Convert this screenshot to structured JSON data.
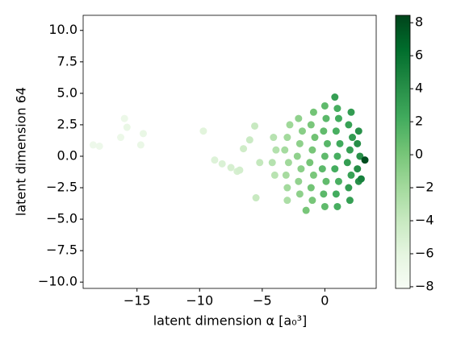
{
  "chart_data": {
    "type": "scatter",
    "xlabel": "latent dimension α [a₀³]",
    "ylabel": "latent dimension 64",
    "x": [
      -18.5,
      -18,
      -16,
      -15.8,
      -16.3,
      -14.5,
      -14.7,
      -9.7,
      -8.8,
      -8.2,
      -7.5,
      -7,
      -6.5,
      -6.8,
      -6,
      -5.6,
      -5.5,
      -5.2,
      -4,
      -4.2,
      -3.9,
      -4.1,
      -3,
      -3.1,
      -2.9,
      -3.2,
      -3,
      -2.8,
      -2,
      -2.1,
      -1.9,
      -2.2,
      -2,
      -1.8,
      -2.1,
      -1,
      -1.1,
      -0.9,
      -1.2,
      -1,
      -0.8,
      -1.1,
      -0.9,
      0,
      -0.1,
      0.1,
      -0.2,
      0,
      0.2,
      -0.1,
      0.1,
      0,
      1,
      0.9,
      1.1,
      0.8,
      1,
      1.2,
      0.9,
      1.1,
      1,
      2,
      1.9,
      2.1,
      1.8,
      2,
      2.2,
      1.9,
      2.1,
      2.7,
      2.6,
      2.8,
      2.6,
      2.7,
      3.2,
      2.9,
      0.8,
      -3,
      -1.5
    ],
    "values": [
      0.9,
      0.8,
      3,
      2.3,
      1.5,
      1.8,
      0.9,
      2,
      -0.3,
      -0.6,
      -0.9,
      -1.2,
      0.6,
      -1.1,
      1.3,
      2.4,
      -3.3,
      -0.5,
      -1.5,
      -0.5,
      0.5,
      1.5,
      -2.5,
      -1.5,
      -0.5,
      0.5,
      1.5,
      2.5,
      -3,
      -2,
      -1,
      0,
      1,
      2,
      3,
      -3.5,
      -2.5,
      -1.5,
      -0.5,
      0.5,
      1.5,
      2.5,
      3.5,
      -4,
      -3,
      -2,
      -1,
      0,
      1,
      2,
      3,
      4,
      -4,
      -3,
      -2,
      -1,
      0,
      1,
      2,
      3,
      3.8,
      -3.5,
      -2.5,
      -1.5,
      -0.5,
      0.5,
      1.5,
      2.5,
      3.5,
      -2,
      -1,
      0,
      1,
      2,
      -0.3,
      -1.8,
      4.7,
      -3.5,
      -4.3
    ],
    "color_values": [
      -7,
      -7,
      -6.8,
      -6.5,
      -6.8,
      -6.5,
      -6.6,
      -5.8,
      -5.5,
      -5.3,
      -5,
      -5,
      -4.5,
      -4.8,
      -4.2,
      -4,
      -4,
      -3.8,
      -3.2,
      -3,
      -2.9,
      -3.1,
      -2,
      -2.2,
      -1.9,
      -2.1,
      -2,
      -1.8,
      -1,
      -1.2,
      -0.9,
      -1.1,
      -1,
      -0.8,
      -1.1,
      0,
      0.2,
      -0.1,
      0.1,
      0,
      0.3,
      -0.1,
      0.2,
      1,
      1.2,
      0.9,
      1.1,
      1,
      1.3,
      0.9,
      1.2,
      1,
      2,
      2.2,
      1.9,
      2.1,
      2,
      2.3,
      1.9,
      2.2,
      2,
      3,
      3.2,
      2.9,
      3.1,
      3,
      3.3,
      2.9,
      3.2,
      4,
      4.2,
      3.9,
      4.1,
      4,
      8,
      5,
      3,
      -2.5,
      0
    ],
    "colormap": [
      "#f7fcf5",
      "#e5f5e0",
      "#c7e9c0",
      "#a1d99b",
      "#74c476",
      "#41ab5d",
      "#238b45",
      "#006d2c",
      "#00441b"
    ],
    "xlim": [
      -19.3,
      4.1
    ],
    "ylim": [
      -10.5,
      11.2
    ],
    "clim": [
      -8.1,
      8.45
    ],
    "xticks": [
      {
        "value": -15,
        "label": "−15"
      },
      {
        "value": -10,
        "label": "−10"
      },
      {
        "value": -5,
        "label": "−5"
      },
      0
    ],
    "yticks": [
      {
        "value": -10,
        "label": "−10.0"
      },
      {
        "value": -7.5,
        "label": "−7.5"
      },
      {
        "value": -5,
        "label": "−5.0"
      },
      {
        "value": -2.5,
        "label": "−2.5"
      },
      {
        "value": 0,
        "label": "0.0"
      },
      2.5,
      {
        "value": 5,
        "label": "5.0"
      },
      7.5,
      {
        "value": 10,
        "label": "10.0"
      }
    ],
    "cticks": [
      {
        "value": -8,
        "label": "−8"
      },
      {
        "value": -6,
        "label": "−6"
      },
      {
        "value": -4,
        "label": "−4"
      },
      {
        "value": -2,
        "label": "−2"
      },
      0,
      2,
      4,
      6,
      8
    ]
  }
}
